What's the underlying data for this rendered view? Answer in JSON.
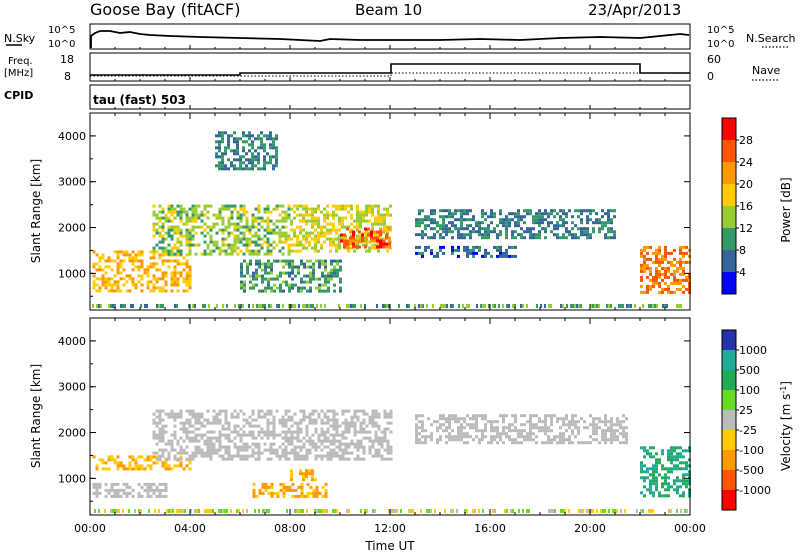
{
  "header": {
    "station": "Goose Bay (fitACF)",
    "beam": "Beam 10",
    "date": "23/Apr/2013"
  },
  "top_panels": {
    "nsky_label": "N.Sky",
    "nsearch_label": "N.Search",
    "noise_ticks": [
      "10^5",
      "10^0"
    ],
    "freq_label": "Freq.",
    "freq_unit": "[MHz]",
    "freq_ticks": [
      "18",
      "8"
    ],
    "nave_label": "Nave",
    "nave_ticks": [
      "60",
      "0"
    ],
    "cpid_label": "CPID",
    "cpid_value": "tau (fast) 503"
  },
  "x_axis": {
    "label": "Time UT",
    "ticks": [
      "00:00",
      "04:00",
      "08:00",
      "12:00",
      "16:00",
      "20:00",
      "00:00"
    ]
  },
  "colorbars": {
    "power": {
      "label": "Power [dB]",
      "ticks": [
        "28",
        "24",
        "20",
        "16",
        "12",
        "8",
        "4"
      ],
      "colors": [
        "#ff0000",
        "#ff5500",
        "#ff9900",
        "#ffcc00",
        "#99cc33",
        "#339966",
        "#336699",
        "#0000ff"
      ]
    },
    "velocity": {
      "label": "Velocity [m s",
      "label_sup": "-1",
      "label_end": "]",
      "ticks": [
        "1000",
        "500",
        "100",
        "25",
        "-25",
        "-100",
        "-500",
        "-1000"
      ],
      "colors": [
        "#2233aa",
        "#22aa99",
        "#22aa55",
        "#66dd22",
        "#bbbbbb",
        "#ffcc00",
        "#ff9900",
        "#ff5500",
        "#ff0000"
      ]
    }
  },
  "chart_data": [
    {
      "type": "heatmap",
      "title": "Power",
      "xlabel": "Time UT",
      "ylabel": "Slant Range [km]",
      "x_ticks": [
        "00:00",
        "04:00",
        "08:00",
        "12:00",
        "16:00",
        "20:00",
        "00:00"
      ],
      "y_ticks": [
        "1000",
        "2000",
        "3000",
        "4000"
      ],
      "ylim": [
        200,
        4500
      ],
      "xlim_hours": [
        0,
        24
      ],
      "colorbar": "Power [dB]",
      "regions": [
        {
          "t0": 0.1,
          "t1": 4.0,
          "r0": 600,
          "r1": 1500,
          "level": 20
        },
        {
          "t0": 2.5,
          "t1": 8.0,
          "r0": 1400,
          "r1": 2500,
          "level": 14
        },
        {
          "t0": 8.0,
          "t1": 12.0,
          "r0": 1500,
          "r1": 2500,
          "level": 16
        },
        {
          "t0": 10.0,
          "t1": 12.0,
          "r0": 1600,
          "r1": 2000,
          "level": 26
        },
        {
          "t0": 5.0,
          "t1": 7.5,
          "r0": 3300,
          "r1": 4100,
          "level": 8
        },
        {
          "t0": 6.0,
          "t1": 10.0,
          "r0": 600,
          "r1": 1300,
          "level": 10
        },
        {
          "t0": 13.0,
          "t1": 21.0,
          "r0": 1800,
          "r1": 2400,
          "level": 8
        },
        {
          "t0": 13.0,
          "t1": 17.0,
          "r0": 1400,
          "r1": 1600,
          "level": 6
        },
        {
          "t0": 22.0,
          "t1": 24.0,
          "r0": 600,
          "r1": 1600,
          "level": 24
        }
      ]
    },
    {
      "type": "heatmap",
      "title": "Velocity",
      "xlabel": "Time UT",
      "ylabel": "Slant Range [km]",
      "x_ticks": [
        "00:00",
        "04:00",
        "08:00",
        "12:00",
        "16:00",
        "20:00",
        "00:00"
      ],
      "y_ticks": [
        "1000",
        "2000",
        "3000",
        "4000"
      ],
      "ylim": [
        200,
        4500
      ],
      "xlim_hours": [
        0,
        24
      ],
      "colorbar": "Velocity [m s-1]",
      "regions": [
        {
          "t0": 0.1,
          "t1": 4.0,
          "r0": 1200,
          "r1": 1500,
          "level": -100
        },
        {
          "t0": 0.1,
          "t1": 3.0,
          "r0": 600,
          "r1": 900,
          "level": 0
        },
        {
          "t0": 2.5,
          "t1": 12.0,
          "r0": 1400,
          "r1": 2500,
          "level": 0
        },
        {
          "t0": 6.5,
          "t1": 9.5,
          "r0": 600,
          "r1": 900,
          "level": -100
        },
        {
          "t0": 8.0,
          "t1": 9.0,
          "r0": 1000,
          "r1": 1200,
          "level": -100
        },
        {
          "t0": 13.0,
          "t1": 21.5,
          "r0": 1800,
          "r1": 2400,
          "level": 0
        },
        {
          "t0": 22.0,
          "t1": 24.0,
          "r0": 600,
          "r1": 1700,
          "level": 500
        }
      ]
    }
  ]
}
